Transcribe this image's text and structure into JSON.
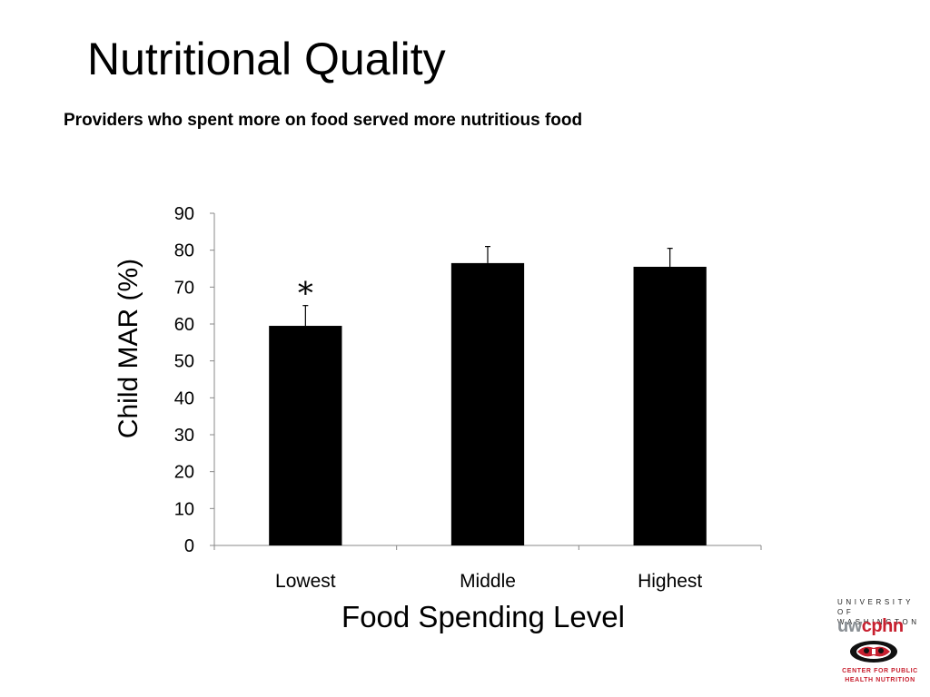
{
  "slide": {
    "title": "Nutritional Quality",
    "subtitle": "Providers who spent more on food served more nutritious food"
  },
  "chart_data": {
    "type": "bar",
    "categories": [
      "Lowest",
      "Middle",
      "Highest"
    ],
    "values": [
      59.5,
      76.5,
      75.5
    ],
    "error_upper": [
      65,
      81,
      80.5
    ],
    "ylim": [
      0,
      90
    ],
    "yticks": [
      0,
      10,
      20,
      30,
      40,
      50,
      60,
      70,
      80,
      90
    ],
    "xlabel": "Food Spending Level",
    "ylabel": "Child MAR (%)",
    "annotations": [
      {
        "category": "Lowest",
        "text": "*"
      }
    ],
    "bar_color": "#000000",
    "grid": false
  },
  "logo": {
    "university_line1": "UNIVERSITY OF",
    "university_line2": "WASHINGTON",
    "brand_uw": "uw",
    "brand_cphn": "cphn",
    "center_line1": "CENTER FOR PUBLIC",
    "center_line2": "HEALTH NUTRITION",
    "accent_color": "#c8202f"
  }
}
